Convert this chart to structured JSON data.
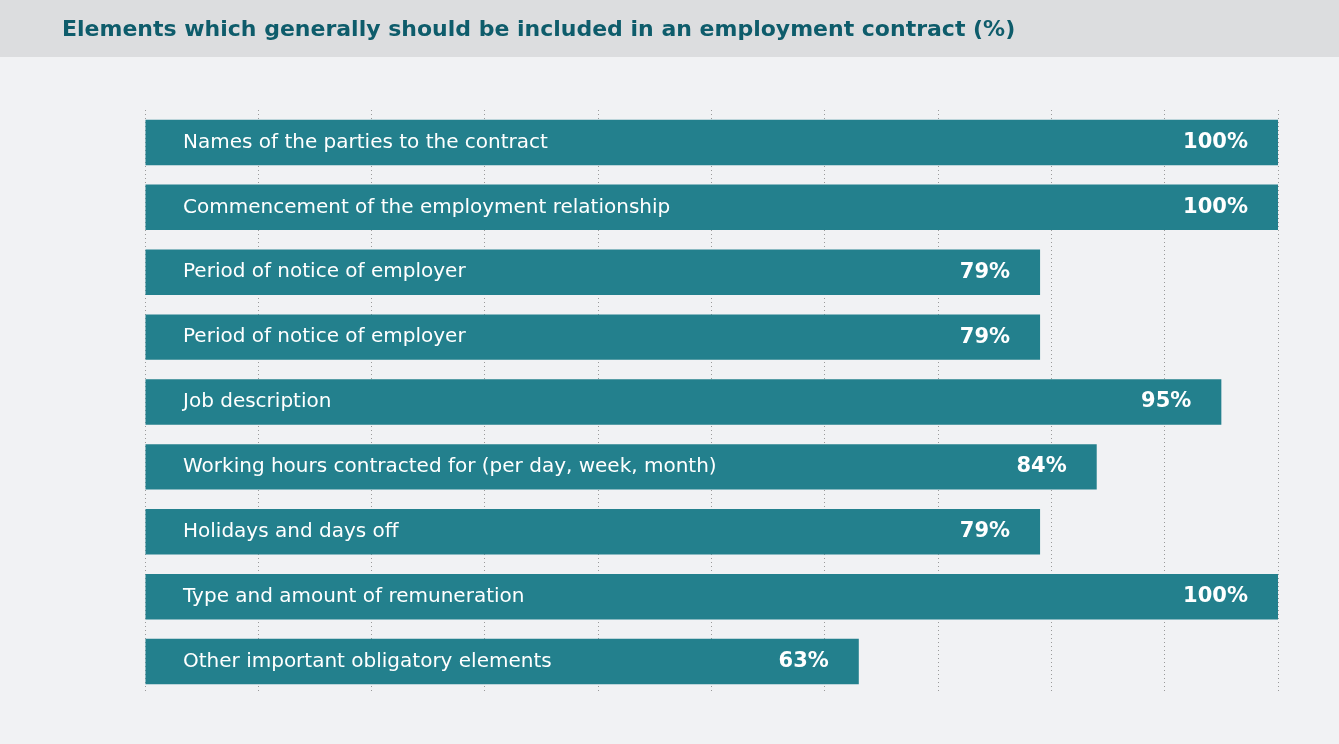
{
  "chart_data": {
    "type": "bar",
    "orientation": "horizontal",
    "title": "Elements which generally should be included in an employment contract (%)",
    "categories": [
      "Names of the parties to the contract",
      "Commencement of the employment relationship",
      "Period of notice of employer",
      "Period of notice of employer",
      "Job description",
      "Working hours contracted for (per day, week, month)",
      "Holidays and days off",
      "Type and amount of remuneration",
      "Other important obligatory elements"
    ],
    "values": [
      100,
      100,
      79,
      79,
      95,
      84,
      79,
      100,
      63
    ],
    "value_labels": [
      "100%",
      "100%",
      "79%",
      "79%",
      "95%",
      "84%",
      "79%",
      "100%",
      "63%"
    ],
    "color": "#23808d",
    "xlim": [
      0,
      100
    ],
    "xticks": [
      {
        "value": 0,
        "label": null
      },
      {
        "value": 10,
        "label": null
      },
      {
        "value": 20,
        "label": null
      },
      {
        "value": 30,
        "label": null
      },
      {
        "value": 40,
        "label": null
      },
      {
        "value": 50,
        "label": null
      },
      {
        "value": 60,
        "label": null
      },
      {
        "value": 70,
        "label": null
      },
      {
        "value": 80,
        "label": null
      },
      {
        "value": 90,
        "label": null
      },
      {
        "value": 100,
        "label": null
      }
    ],
    "grid": "x",
    "legend": false,
    "tick_labels": "y"
  }
}
